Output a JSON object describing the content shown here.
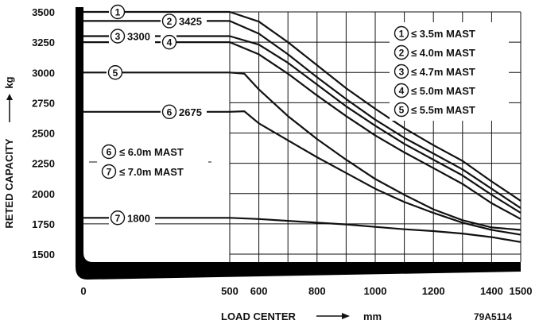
{
  "chart_data": {
    "type": "line",
    "xlabel": "LOAD CENTER",
    "xunit": "mm",
    "ylabel": "RETED CAPACITY",
    "yunit": "kg",
    "code": "79A5114",
    "x_ticks": [
      "0",
      "500",
      "600",
      "800",
      "1000",
      "1200",
      "1400",
      "1500"
    ],
    "y_ticks": [
      "3500",
      "3250",
      "3000",
      "2750",
      "2500",
      "2250",
      "2000",
      "1750",
      "1500"
    ],
    "xlim": [
      500,
      1500
    ],
    "ylim": [
      1500,
      3500
    ],
    "grid": true,
    "series": [
      {
        "name": "① ≤ 3.5m MAST",
        "label": "①",
        "points": [
          [
            500,
            3500
          ],
          [
            600,
            3420
          ],
          [
            700,
            3250
          ],
          [
            800,
            3060
          ],
          [
            900,
            2870
          ],
          [
            1000,
            2700
          ],
          [
            1100,
            2540
          ],
          [
            1200,
            2400
          ],
          [
            1300,
            2270
          ],
          [
            1400,
            2100
          ],
          [
            1500,
            1940
          ]
        ]
      },
      {
        "name": "② ≤ 4.0m MAST",
        "label": "②",
        "value_label": "3425",
        "points": [
          [
            500,
            3425
          ],
          [
            600,
            3320
          ],
          [
            700,
            3150
          ],
          [
            800,
            2960
          ],
          [
            900,
            2780
          ],
          [
            1000,
            2610
          ],
          [
            1100,
            2460
          ],
          [
            1200,
            2330
          ],
          [
            1300,
            2200
          ],
          [
            1400,
            2040
          ],
          [
            1500,
            1880
          ]
        ]
      },
      {
        "name": "③ ≤ 4.7m MAST",
        "label": "③",
        "value_label": "3300",
        "points": [
          [
            500,
            3300
          ],
          [
            600,
            3230
          ],
          [
            700,
            3080
          ],
          [
            800,
            2900
          ],
          [
            900,
            2720
          ],
          [
            1000,
            2560
          ],
          [
            1100,
            2410
          ],
          [
            1200,
            2280
          ],
          [
            1300,
            2150
          ],
          [
            1400,
            1990
          ],
          [
            1500,
            1840
          ]
        ]
      },
      {
        "name": "④ ≤ 5.0m MAST",
        "label": "④",
        "points": [
          [
            500,
            3250
          ],
          [
            600,
            3150
          ],
          [
            700,
            2990
          ],
          [
            800,
            2810
          ],
          [
            900,
            2640
          ],
          [
            1000,
            2480
          ],
          [
            1100,
            2340
          ],
          [
            1200,
            2210
          ],
          [
            1300,
            2080
          ],
          [
            1400,
            1920
          ],
          [
            1500,
            1790
          ]
        ]
      },
      {
        "name": "⑤ ≤ 5.5m MAST",
        "label": "⑤",
        "points": [
          [
            500,
            3000
          ],
          [
            550,
            2990
          ],
          [
            600,
            2860
          ],
          [
            700,
            2640
          ],
          [
            800,
            2450
          ],
          [
            900,
            2280
          ],
          [
            1000,
            2120
          ],
          [
            1100,
            1990
          ],
          [
            1200,
            1870
          ],
          [
            1300,
            1780
          ],
          [
            1400,
            1720
          ],
          [
            1500,
            1700
          ]
        ]
      },
      {
        "name": "⑥ ≤ 6.0m MAST",
        "label": "⑥",
        "value_label": "2675",
        "points": [
          [
            500,
            2675
          ],
          [
            550,
            2680
          ],
          [
            600,
            2580
          ],
          [
            700,
            2440
          ],
          [
            800,
            2300
          ],
          [
            900,
            2170
          ],
          [
            1000,
            2040
          ],
          [
            1100,
            1930
          ],
          [
            1200,
            1840
          ],
          [
            1300,
            1760
          ],
          [
            1400,
            1700
          ],
          [
            1500,
            1660
          ]
        ]
      },
      {
        "name": "⑦ ≤ 7.0m MAST",
        "label": "⑦",
        "value_label": "1800",
        "points": [
          [
            0,
            1800
          ],
          [
            500,
            1800
          ],
          [
            600,
            1790
          ],
          [
            700,
            1775
          ],
          [
            800,
            1760
          ],
          [
            900,
            1745
          ],
          [
            1000,
            1725
          ],
          [
            1100,
            1705
          ],
          [
            1200,
            1690
          ],
          [
            1300,
            1670
          ],
          [
            1400,
            1640
          ],
          [
            1500,
            1600
          ]
        ]
      }
    ],
    "legend_top_right": [
      {
        "num": "①",
        "text": "≤ 3.5m MAST"
      },
      {
        "num": "②",
        "text": "≤ 4.0m MAST"
      },
      {
        "num": "③",
        "text": "≤ 4.7m MAST"
      },
      {
        "num": "④",
        "text": "≤ 5.0m MAST"
      },
      {
        "num": "⑤",
        "text": "≤ 5.5m MAST"
      }
    ],
    "legend_left": [
      {
        "num": "⑥",
        "text": "≤ 6.0m MAST"
      },
      {
        "num": "⑦",
        "text": "≤ 7.0m MAST"
      }
    ]
  }
}
